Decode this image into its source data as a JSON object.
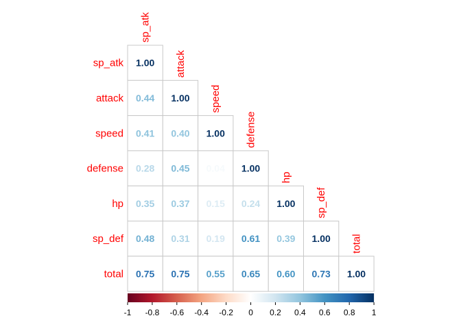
{
  "chart_data": {
    "type": "heatmap",
    "subtype": "correlation-lower-triangle",
    "variables": [
      "sp_atk",
      "attack",
      "speed",
      "defense",
      "hp",
      "sp_def",
      "total"
    ],
    "matrix": [
      [
        1.0
      ],
      [
        0.44,
        1.0
      ],
      [
        0.41,
        0.4,
        1.0
      ],
      [
        0.28,
        0.45,
        0.04,
        1.0
      ],
      [
        0.35,
        0.37,
        0.15,
        0.24,
        1.0
      ],
      [
        0.48,
        0.31,
        0.19,
        0.61,
        0.39,
        1.0
      ],
      [
        0.75,
        0.75,
        0.55,
        0.65,
        0.6,
        0.73,
        1.0
      ]
    ],
    "value_format": "0.00",
    "label_color": "#ff0000",
    "colorbar": {
      "range": [
        -1,
        1
      ],
      "ticks": [
        "-1",
        "-0.8",
        "-0.6",
        "-0.4",
        "-0.2",
        "0",
        "0.2",
        "0.4",
        "0.6",
        "0.8",
        "1"
      ],
      "colors": [
        "#67001f",
        "#b2182b",
        "#d6604d",
        "#f4a582",
        "#fddbc7",
        "#ffffff",
        "#d1e5f0",
        "#92c5de",
        "#4393c3",
        "#2166ac",
        "#053061"
      ]
    },
    "grid": true
  }
}
